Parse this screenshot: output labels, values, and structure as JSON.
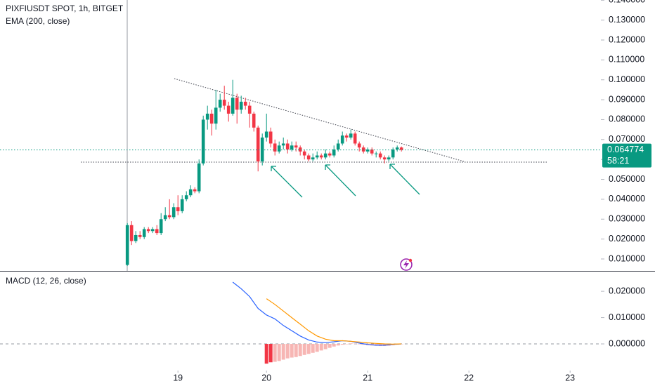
{
  "chart_data": [
    {
      "type": "candlestick",
      "title": "PIXFIUSDT SPOT, 1h, BITGET",
      "subtitle": "EMA (200, close)",
      "up_color": "#089981",
      "down_color": "#f23645",
      "x": [
        0,
        1,
        2,
        3,
        4,
        5,
        6,
        7,
        8,
        9,
        10,
        11,
        12,
        13,
        14,
        15,
        16,
        17,
        18,
        19,
        20,
        21,
        22,
        23,
        24,
        25,
        26,
        27,
        28,
        29,
        30,
        31,
        32,
        33,
        34,
        35,
        36,
        37,
        38,
        39,
        40,
        41,
        42,
        43,
        44,
        45,
        46,
        47,
        48,
        49,
        50,
        51,
        52,
        53,
        54,
        55,
        56,
        57,
        58,
        59,
        60,
        61,
        62,
        63,
        64,
        65
      ],
      "open": [
        0.007,
        0.027,
        0.019,
        0.022,
        0.021,
        0.025,
        0.024,
        0.025,
        0.023,
        0.03,
        0.032,
        0.031,
        0.036,
        0.034,
        0.04,
        0.042,
        0.045,
        0.044,
        0.058,
        0.08,
        0.083,
        0.078,
        0.086,
        0.09,
        0.087,
        0.083,
        0.091,
        0.085,
        0.089,
        0.087,
        0.083,
        0.076,
        0.059,
        0.071,
        0.074,
        0.068,
        0.064,
        0.067,
        0.068,
        0.065,
        0.067,
        0.066,
        0.064,
        0.062,
        0.06,
        0.061,
        0.062,
        0.061,
        0.063,
        0.062,
        0.065,
        0.068,
        0.072,
        0.071,
        0.073,
        0.068,
        0.066,
        0.064,
        0.065,
        0.063,
        0.063,
        0.061,
        0.06,
        0.061,
        0.065,
        0.066
      ],
      "high": [
        0.028,
        0.029,
        0.024,
        0.024,
        0.026,
        0.026,
        0.026,
        0.027,
        0.033,
        0.036,
        0.04,
        0.038,
        0.042,
        0.042,
        0.044,
        0.047,
        0.046,
        0.06,
        0.082,
        0.087,
        0.085,
        0.095,
        0.093,
        0.097,
        0.089,
        0.1,
        0.093,
        0.092,
        0.091,
        0.089,
        0.084,
        0.077,
        0.073,
        0.083,
        0.076,
        0.07,
        0.069,
        0.071,
        0.07,
        0.069,
        0.069,
        0.067,
        0.065,
        0.063,
        0.063,
        0.064,
        0.063,
        0.065,
        0.064,
        0.067,
        0.07,
        0.074,
        0.073,
        0.075,
        0.074,
        0.069,
        0.067,
        0.066,
        0.066,
        0.064,
        0.064,
        0.062,
        0.062,
        0.066,
        0.067,
        0.0665
      ],
      "low": [
        0.0065,
        0.017,
        0.018,
        0.02,
        0.02,
        0.023,
        0.023,
        0.022,
        0.022,
        0.029,
        0.03,
        0.03,
        0.032,
        0.033,
        0.039,
        0.041,
        0.043,
        0.043,
        0.057,
        0.075,
        0.072,
        0.075,
        0.084,
        0.085,
        0.079,
        0.082,
        0.078,
        0.083,
        0.085,
        0.076,
        0.074,
        0.054,
        0.057,
        0.069,
        0.066,
        0.062,
        0.063,
        0.065,
        0.063,
        0.064,
        0.064,
        0.062,
        0.06,
        0.059,
        0.059,
        0.06,
        0.06,
        0.06,
        0.061,
        0.061,
        0.064,
        0.067,
        0.069,
        0.07,
        0.067,
        0.064,
        0.063,
        0.063,
        0.062,
        0.061,
        0.06,
        0.058,
        0.059,
        0.06,
        0.064,
        0.064
      ],
      "close": [
        0.027,
        0.019,
        0.022,
        0.021,
        0.025,
        0.024,
        0.025,
        0.023,
        0.03,
        0.032,
        0.031,
        0.036,
        0.034,
        0.04,
        0.042,
        0.045,
        0.044,
        0.058,
        0.08,
        0.083,
        0.078,
        0.086,
        0.09,
        0.087,
        0.083,
        0.091,
        0.085,
        0.089,
        0.087,
        0.083,
        0.076,
        0.059,
        0.071,
        0.074,
        0.068,
        0.064,
        0.067,
        0.068,
        0.065,
        0.067,
        0.066,
        0.064,
        0.062,
        0.06,
        0.061,
        0.062,
        0.061,
        0.063,
        0.062,
        0.065,
        0.068,
        0.072,
        0.071,
        0.073,
        0.068,
        0.066,
        0.064,
        0.065,
        0.063,
        0.063,
        0.061,
        0.06,
        0.061,
        0.065,
        0.066,
        0.0648
      ],
      "last_price": {
        "value": 0.064774,
        "label": "0.064774"
      },
      "countdown": "58:21",
      "xlim": [
        -30.2,
        112.3
      ],
      "ylim": [
        0.004,
        0.1401
      ],
      "yticks": [
        {
          "value": 0.01,
          "label": "0.010000"
        },
        {
          "value": 0.02,
          "label": "0.020000"
        },
        {
          "value": 0.03,
          "label": "0.030000"
        },
        {
          "value": 0.04,
          "label": "0.040000"
        },
        {
          "value": 0.05,
          "label": "0.050000"
        },
        {
          "value": 0.06,
          "label": "0.060000"
        },
        {
          "value": 0.07,
          "label": "0.070000"
        },
        {
          "value": 0.08,
          "label": "0.080000"
        },
        {
          "value": 0.09,
          "label": "0.090000"
        },
        {
          "value": 0.1,
          "label": "0.100000"
        },
        {
          "value": 0.11,
          "label": "0.110000"
        },
        {
          "value": 0.12,
          "label": "0.120000"
        },
        {
          "value": 0.13,
          "label": "0.130000"
        },
        {
          "value": 0.14,
          "label": "0.140000"
        }
      ]
    },
    {
      "type": "macd",
      "title": "MACD (12, 26, close)",
      "series": [
        {
          "color": "#2962ff",
          "x": [
            25,
            27,
            29,
            31,
            33,
            35,
            37,
            39,
            41,
            43,
            45,
            47,
            49,
            51,
            53,
            55,
            57,
            59,
            61,
            63,
            65
          ],
          "values": [
            0.0235,
            0.021,
            0.018,
            0.0135,
            0.011,
            0.0095,
            0.007,
            0.005,
            0.003,
            0.0015,
            0.0007,
            0.0005,
            0.0008,
            0.0012,
            0.001,
            0.0003,
            -0.0002,
            -0.0005,
            -0.0005,
            -0.0002,
            0.0
          ]
        },
        {
          "color": "#ff9800",
          "x": [
            33,
            35,
            37,
            39,
            41,
            43,
            45,
            47,
            49,
            51,
            53,
            55,
            57,
            59,
            61,
            63,
            65
          ],
          "values": [
            0.0172,
            0.015,
            0.0125,
            0.01,
            0.0075,
            0.005,
            0.003,
            0.0018,
            0.0012,
            0.0012,
            0.001,
            0.0007,
            0.0004,
            0.0002,
            0.0,
            -0.0001,
            0.0
          ]
        }
      ],
      "histogram": {
        "color": "#f7b6b4",
        "x": [
          33,
          34,
          35,
          36,
          37,
          38,
          39,
          40,
          41,
          42,
          43,
          44,
          45,
          46,
          47,
          48,
          49,
          50,
          51,
          52,
          53,
          54,
          55,
          56,
          57,
          58,
          59,
          60,
          61,
          62,
          63,
          64,
          65
        ],
        "values": [
          -0.0075,
          -0.007,
          -0.0068,
          -0.0065,
          -0.006,
          -0.0055,
          -0.0052,
          -0.005,
          -0.0046,
          -0.0042,
          -0.0038,
          -0.0034,
          -0.003,
          -0.0025,
          -0.002,
          -0.0015,
          -0.001,
          -0.0006,
          -0.0003,
          0.0,
          0.0002,
          0.0001,
          -0.0001,
          -0.0003,
          -0.0005,
          -0.0006,
          -0.0007,
          -0.0008,
          -0.0008,
          -0.0007,
          -0.0005,
          -0.0003,
          -0.0001
        ]
      },
      "xlim": [
        -30.2,
        112.3
      ],
      "ylim": [
        -0.008,
        0.0275
      ],
      "yticks": [
        {
          "value": 0.0,
          "label": "0.000000"
        },
        {
          "value": 0.01,
          "label": "0.010000"
        },
        {
          "value": 0.02,
          "label": "0.020000"
        }
      ],
      "xticks": [
        {
          "value": 12,
          "label": "19"
        },
        {
          "value": 33,
          "label": "20"
        },
        {
          "value": 57,
          "label": "21"
        },
        {
          "value": 81,
          "label": "22"
        },
        {
          "value": 105,
          "label": "23"
        }
      ]
    }
  ]
}
